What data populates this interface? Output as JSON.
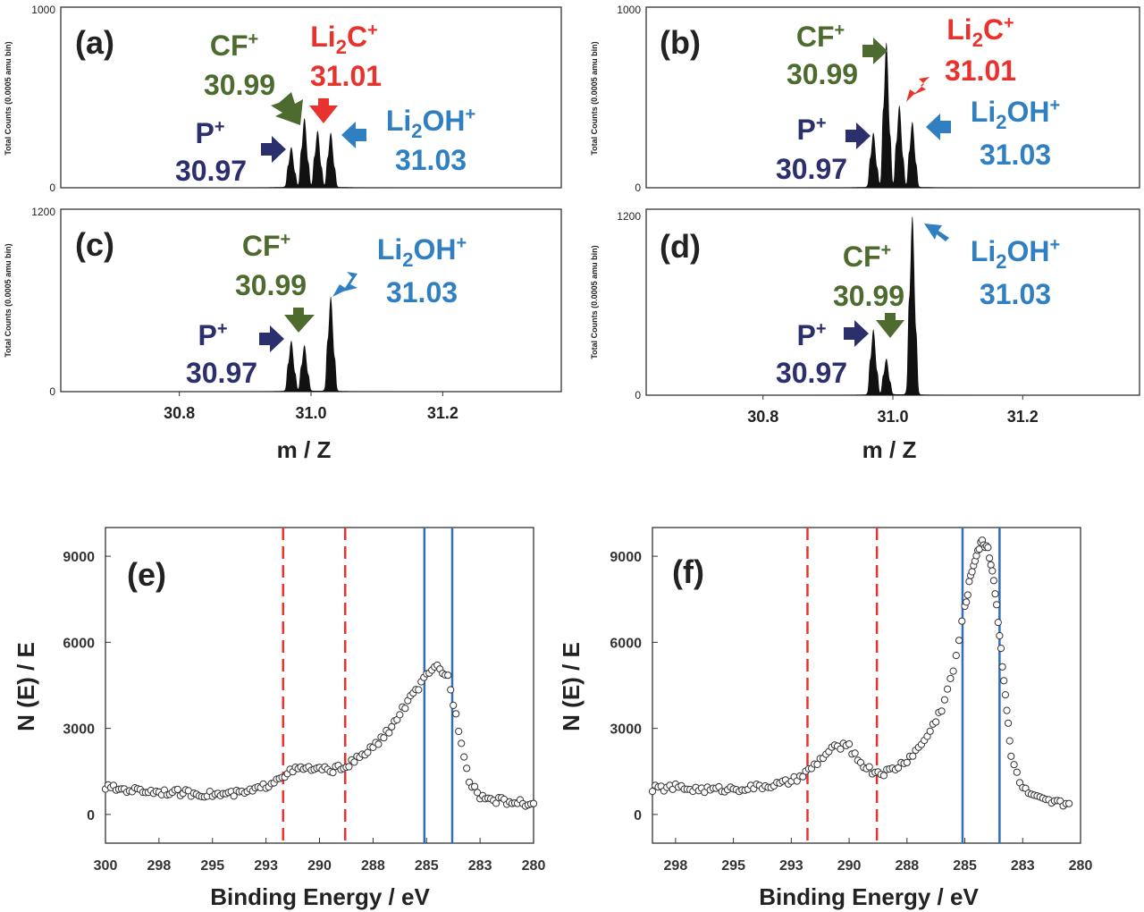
{
  "chart_data": [
    {
      "type": "line",
      "panel": "(a)",
      "xlabel": "m / Z",
      "ylabel": "Total Counts (0.0005 amu bin)",
      "xlim": [
        30.62,
        31.38
      ],
      "ylim": [
        0,
        1000
      ],
      "ytick_labels": [
        "0",
        "1000"
      ],
      "peaks": [
        {
          "x": 30.97,
          "y": 220
        },
        {
          "x": 30.99,
          "y": 380
        },
        {
          "x": 31.01,
          "y": 310
        },
        {
          "x": 31.03,
          "y": 300
        }
      ],
      "annotations": [
        {
          "ion": "P",
          "ion_sub": "",
          "charge": "+",
          "mass": "30.97",
          "color": "#2b2f6b"
        },
        {
          "ion": "CF",
          "ion_sub": "",
          "charge": "+",
          "mass": "30.99",
          "color": "#4e6b2f"
        },
        {
          "ion": "Li",
          "ion_sub": "2",
          "ion_rest": "C",
          "charge": "+",
          "mass": "31.01",
          "color": "#e8322e"
        },
        {
          "ion": "Li",
          "ion_sub": "2",
          "ion_rest": "OH",
          "charge": "+",
          "mass": "31.03",
          "color": "#2f7fc1"
        }
      ]
    },
    {
      "type": "line",
      "panel": "(b)",
      "xlabel": "m / Z",
      "ylabel": "Total Counts (0.0005 amu bin)",
      "xlim": [
        30.62,
        31.38
      ],
      "ylim": [
        0,
        1000
      ],
      "ytick_labels": [
        "0",
        "1000"
      ],
      "peaks": [
        {
          "x": 30.97,
          "y": 300
        },
        {
          "x": 30.99,
          "y": 800
        },
        {
          "x": 31.01,
          "y": 450
        },
        {
          "x": 31.03,
          "y": 360
        }
      ],
      "annotations": [
        {
          "ion": "P",
          "ion_sub": "",
          "charge": "+",
          "mass": "30.97",
          "color": "#2b2f6b"
        },
        {
          "ion": "CF",
          "ion_sub": "",
          "charge": "+",
          "mass": "30.99",
          "color": "#4e6b2f"
        },
        {
          "ion": "Li",
          "ion_sub": "2",
          "ion_rest": "C",
          "charge": "+",
          "mass": "31.01",
          "color": "#e8322e"
        },
        {
          "ion": "Li",
          "ion_sub": "2",
          "ion_rest": "OH",
          "charge": "+",
          "mass": "31.03",
          "color": "#2f7fc1"
        }
      ]
    },
    {
      "type": "line",
      "panel": "(c)",
      "xlabel": "m / Z",
      "ylabel": "Total Counts (0.0005 amu bin)",
      "xlim": [
        30.62,
        31.38
      ],
      "ylim": [
        0,
        1200
      ],
      "ytick_labels": [
        "0",
        "1200"
      ],
      "xtick_values": [
        30.8,
        31.0,
        31.2
      ],
      "xtick_labels": [
        "30.8",
        "31.0",
        "31.2"
      ],
      "peaks": [
        {
          "x": 30.97,
          "y": 330
        },
        {
          "x": 30.99,
          "y": 300
        },
        {
          "x": 31.03,
          "y": 620
        }
      ],
      "annotations": [
        {
          "ion": "P",
          "ion_sub": "",
          "charge": "+",
          "mass": "30.97",
          "color": "#2b2f6b"
        },
        {
          "ion": "CF",
          "ion_sub": "",
          "charge": "+",
          "mass": "30.99",
          "color": "#4e6b2f"
        },
        {
          "ion": "Li",
          "ion_sub": "2",
          "ion_rest": "OH",
          "charge": "+",
          "mass": "31.03",
          "color": "#2f7fc1"
        }
      ]
    },
    {
      "type": "line",
      "panel": "(d)",
      "xlabel": "m / Z",
      "ylabel": "Total Counts (0.0005 amu bin)",
      "xlim": [
        30.62,
        31.38
      ],
      "ylim": [
        0,
        1200
      ],
      "ytick_labels": [
        "0",
        "1200"
      ],
      "xtick_values": [
        30.8,
        31.0,
        31.2
      ],
      "xtick_labels": [
        "30.8",
        "31.0",
        "31.2"
      ],
      "peaks": [
        {
          "x": 30.97,
          "y": 420
        },
        {
          "x": 30.99,
          "y": 230
        },
        {
          "x": 31.03,
          "y": 1150
        }
      ],
      "annotations": [
        {
          "ion": "P",
          "ion_sub": "",
          "charge": "+",
          "mass": "30.97",
          "color": "#2b2f6b"
        },
        {
          "ion": "CF",
          "ion_sub": "",
          "charge": "+",
          "mass": "30.99",
          "color": "#4e6b2f"
        },
        {
          "ion": "Li",
          "ion_sub": "2",
          "ion_rest": "OH",
          "charge": "+",
          "mass": "31.03",
          "color": "#2f7fc1"
        }
      ]
    },
    {
      "type": "scatter",
      "panel": "(e)",
      "xlabel": "Binding Energy / eV",
      "ylabel": "N (E) / E",
      "xlim": [
        300,
        280
      ],
      "ylim": [
        -1000,
        10000
      ],
      "xtick_values": [
        300,
        297.5,
        295,
        292.5,
        290,
        287.5,
        285,
        282.5,
        280
      ],
      "xtick_labels": [
        "300",
        "298",
        "295",
        "293",
        "290",
        "288",
        "285",
        "283",
        "280"
      ],
      "ytick_values": [
        0,
        3000,
        6000,
        9000
      ],
      "ytick_labels": [
        "0",
        "3000",
        "6000",
        "9000"
      ],
      "reference_lines": {
        "red_dashed": [
          291.7,
          288.8
        ],
        "blue_solid": [
          285.1,
          283.8
        ]
      },
      "x": [
        300,
        299.5,
        299,
        298.5,
        298,
        297.5,
        297,
        296.5,
        296,
        295.5,
        295,
        294.5,
        294,
        293.5,
        293,
        292.5,
        292,
        291.5,
        291,
        290.5,
        290,
        289.5,
        289,
        288.5,
        288,
        287.5,
        287,
        286.5,
        286,
        285.5,
        285,
        284.5,
        284,
        283.5,
        283,
        282.5,
        282,
        281.5,
        281,
        280.5,
        280
      ],
      "y": [
        950,
        900,
        870,
        840,
        820,
        800,
        780,
        760,
        740,
        720,
        700,
        700,
        720,
        760,
        850,
        1000,
        1250,
        1450,
        1580,
        1600,
        1560,
        1550,
        1620,
        1800,
        2050,
        2350,
        2700,
        3200,
        3800,
        4300,
        4800,
        5150,
        4800,
        3000,
        1200,
        650,
        520,
        480,
        430,
        400,
        380
      ]
    },
    {
      "type": "scatter",
      "panel": "(f)",
      "xlabel": "Binding Energy / eV",
      "ylabel": "N (E) / E",
      "xlim": [
        298.5,
        280
      ],
      "ylim": [
        -1000,
        10000
      ],
      "xtick_values": [
        297.5,
        295,
        292.5,
        290,
        287.5,
        285,
        282.5,
        280
      ],
      "xtick_labels": [
        "298",
        "295",
        "293",
        "290",
        "288",
        "285",
        "283",
        "280"
      ],
      "ytick_values": [
        0,
        3000,
        6000,
        9000
      ],
      "ytick_labels": [
        "0",
        "3000",
        "6000",
        "9000"
      ],
      "reference_lines": {
        "red_dashed": [
          291.8,
          288.8
        ],
        "blue_solid": [
          285.1,
          283.5
        ]
      },
      "x": [
        298.5,
        298,
        297.5,
        297,
        296.5,
        296,
        295.5,
        295,
        294.5,
        294,
        293.5,
        293,
        292.5,
        292,
        291.5,
        291,
        290.5,
        290,
        289.5,
        289,
        288.5,
        288,
        287.5,
        287,
        286.5,
        286,
        285.5,
        285,
        284.75,
        284.5,
        284.25,
        284,
        283.75,
        283.5,
        283.25,
        283,
        282.5,
        282,
        281.5,
        281,
        280.5
      ],
      "y": [
        900,
        920,
        950,
        900,
        880,
        860,
        880,
        900,
        920,
        950,
        1000,
        1050,
        1150,
        1350,
        1700,
        2100,
        2400,
        2350,
        1800,
        1500,
        1450,
        1600,
        1900,
        2300,
        2900,
        3700,
        5000,
        7200,
        8300,
        9100,
        9500,
        9300,
        8200,
        6300,
        4200,
        2000,
        900,
        600,
        450,
        400,
        380
      ]
    }
  ],
  "ms_common": {
    "xlabel": "m / Z",
    "xtick_labels": [
      "30.8",
      "31.0",
      "31.2"
    ]
  }
}
